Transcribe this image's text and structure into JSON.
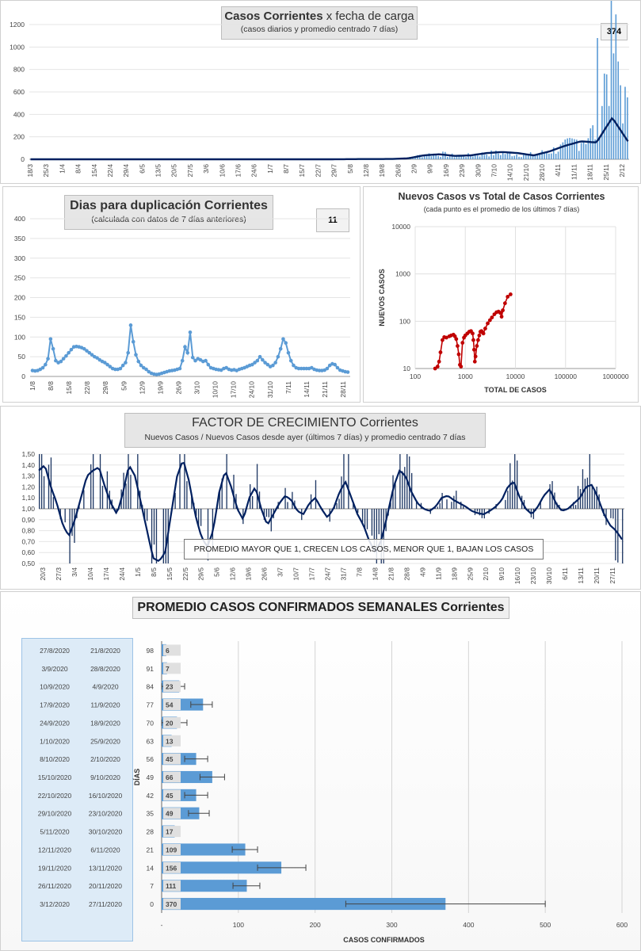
{
  "panel1": {
    "title_bold": "Casos Corrientes",
    "title_rest": "x fecha de carga",
    "subtitle": "(casos diarios y promedio centrado 7 días)",
    "badge": "374",
    "colors": {
      "bars": "#5b9bd5",
      "line": "#002060"
    }
  },
  "panel2": {
    "title": "Dias para duplicación Corrientes",
    "subtitle": "(calculada con datos de 7 días anteriores)",
    "badge": "11",
    "colors": {
      "line": "#5b9bd5"
    }
  },
  "panel3": {
    "title": "Nuevos Casos vs Total de Casos Corrientes",
    "subtitle": "(cada punto es el promedio de los últimos 7 días)",
    "colors": {
      "line": "#c00000"
    }
  },
  "panel4": {
    "title_caps": "FACTOR DE CRECIMIENTO",
    "title_rest": "Corrientes",
    "subtitle": "Nuevos Casos  / Nuevos Casos desde ayer (últimos 7 días) y promedio  centrado 7 días",
    "annotation": "PROMEDIO MAYOR QUE 1, CRECEN LOS CASOS, MENOR QUE 1, BAJAN LOS CASOS",
    "colors": {
      "bars": "#1f3864",
      "line": "#002060"
    }
  },
  "panel5": {
    "title": "PROMEDIO CASOS CONFIRMADOS SEMANALES Corrientes",
    "colors": {
      "bars": "#5b9bd5",
      "date_box": "#ddebf7"
    }
  },
  "chart_data": [
    {
      "type": "bar",
      "title": "Casos Corrientes x fecha de carga",
      "ylim": [
        0,
        1200
      ],
      "yticks": [
        0,
        200,
        400,
        600,
        800,
        1000,
        1200
      ],
      "xtick_labels": [
        "18/3",
        "25/3",
        "1/4",
        "8/4",
        "15/4",
        "22/4",
        "29/4",
        "6/5",
        "13/5",
        "20/5",
        "27/5",
        "3/6",
        "10/6",
        "17/6",
        "24/6",
        "1/7",
        "8/7",
        "15/7",
        "22/7",
        "29/7",
        "5/8",
        "12/8",
        "19/8",
        "26/8",
        "2/9",
        "9/9",
        "16/9",
        "23/9",
        "30/9",
        "7/10",
        "14/10",
        "21/10",
        "28/10",
        "4/11",
        "11/11",
        "18/11",
        "25/11",
        "2/12"
      ],
      "series": [
        {
          "type": "bar",
          "values": [
            0,
            0,
            0,
            0,
            0,
            0,
            0,
            0,
            0,
            0,
            0,
            0,
            0,
            0,
            0,
            0,
            0,
            0,
            0,
            0,
            0,
            0,
            0,
            0,
            5,
            40,
            50,
            30,
            35,
            50,
            55,
            45,
            40,
            70,
            110,
            180,
            250,
            1080,
            374
          ]
        },
        {
          "type": "line",
          "values": [
            0,
            0,
            0,
            0,
            0,
            0,
            0,
            0,
            0,
            0,
            0,
            0,
            0,
            0,
            0,
            0,
            0,
            0,
            0,
            0,
            1,
            2,
            2,
            3,
            8,
            35,
            45,
            30,
            35,
            55,
            65,
            55,
            35,
            70,
            120,
            160,
            150,
            370,
            160
          ]
        }
      ]
    },
    {
      "type": "line",
      "title": "Dias para duplicación Corrientes",
      "ylim": [
        0,
        400
      ],
      "yticks": [
        0,
        50,
        100,
        150,
        200,
        250,
        300,
        350,
        400
      ],
      "xtick_labels": [
        "1/8",
        "8/8",
        "15/8",
        "22/8",
        "29/8",
        "5/9",
        "12/9",
        "19/9",
        "26/9",
        "3/10",
        "10/10",
        "17/10",
        "24/10",
        "31/10",
        "7/11",
        "14/11",
        "21/11",
        "28/11"
      ],
      "values": [
        15,
        14,
        15,
        18,
        22,
        30,
        45,
        95,
        70,
        40,
        35,
        38,
        45,
        52,
        60,
        68,
        75,
        76,
        75,
        73,
        70,
        65,
        60,
        55,
        50,
        47,
        42,
        38,
        35,
        30,
        25,
        20,
        18,
        18,
        20,
        28,
        35,
        60,
        130,
        88,
        55,
        38,
        28,
        22,
        18,
        12,
        8,
        6,
        5,
        6,
        8,
        10,
        12,
        14,
        15,
        16,
        18,
        20,
        40,
        75,
        60,
        112,
        48,
        40,
        45,
        42,
        38,
        40,
        30,
        22,
        20,
        18,
        17,
        16,
        20,
        22,
        18,
        16,
        17,
        15,
        18,
        20,
        22,
        25,
        28,
        30,
        35,
        40,
        50,
        42,
        35,
        30,
        25,
        28,
        35,
        50,
        70,
        95,
        85,
        60,
        40,
        28,
        22,
        20,
        20,
        20,
        20,
        20,
        22,
        18,
        16,
        15,
        15,
        16,
        20,
        28,
        32,
        30,
        22,
        16,
        14,
        12,
        11
      ]
    },
    {
      "type": "scatter",
      "title": "Nuevos Casos vs Total de Casos Corrientes",
      "xlabel": "TOTAL DE CASOS",
      "ylabel": "NUEVOS  CASOS",
      "xscale": "log",
      "yscale": "log",
      "xlim": [
        100,
        1000000
      ],
      "ylim": [
        10,
        10000
      ],
      "xtick_labels": [
        "100",
        "1000",
        "10000",
        "100000",
        "1000000"
      ],
      "ytick_labels": [
        "10",
        "100",
        "1000",
        "10000"
      ],
      "points": [
        [
          250,
          10
        ],
        [
          280,
          11
        ],
        [
          300,
          14
        ],
        [
          320,
          22
        ],
        [
          350,
          40
        ],
        [
          380,
          46
        ],
        [
          420,
          45
        ],
        [
          480,
          48
        ],
        [
          520,
          50
        ],
        [
          580,
          52
        ],
        [
          620,
          48
        ],
        [
          660,
          42
        ],
        [
          700,
          30
        ],
        [
          740,
          20
        ],
        [
          780,
          12
        ],
        [
          820,
          11
        ],
        [
          880,
          35
        ],
        [
          940,
          45
        ],
        [
          1000,
          50
        ],
        [
          1100,
          55
        ],
        [
          1200,
          60
        ],
        [
          1300,
          62
        ],
        [
          1400,
          55
        ],
        [
          1450,
          40
        ],
        [
          1500,
          25
        ],
        [
          1550,
          14
        ],
        [
          1600,
          18
        ],
        [
          1700,
          30
        ],
        [
          1800,
          40
        ],
        [
          1900,
          50
        ],
        [
          2000,
          60
        ],
        [
          2100,
          62
        ],
        [
          2200,
          58
        ],
        [
          2300,
          55
        ],
        [
          2500,
          70
        ],
        [
          2800,
          90
        ],
        [
          3100,
          105
        ],
        [
          3400,
          120
        ],
        [
          3800,
          140
        ],
        [
          4200,
          155
        ],
        [
          4600,
          160
        ],
        [
          5000,
          150
        ],
        [
          5300,
          125
        ],
        [
          5600,
          170
        ],
        [
          6200,
          240
        ],
        [
          7000,
          330
        ],
        [
          8000,
          370
        ]
      ]
    },
    {
      "type": "bar",
      "title": "FACTOR DE CRECIMIENTO Corrientes",
      "ylim": [
        0.5,
        1.5
      ],
      "yticks": [
        "0,50",
        "0,60",
        "0,70",
        "0,80",
        "0,90",
        "1,00",
        "1,10",
        "1,20",
        "1,30",
        "1,40",
        "1,50"
      ],
      "xtick_labels": [
        "20/3",
        "27/3",
        "3/4",
        "10/4",
        "17/4",
        "24/4",
        "1/5",
        "8/5",
        "15/5",
        "22/5",
        "29/5",
        "5/6",
        "12/6",
        "19/6",
        "26/6",
        "3/7",
        "10/7",
        "17/7",
        "24/7",
        "31/7",
        "7/8",
        "14/8",
        "21/8",
        "28/8",
        "4/9",
        "11/9",
        "18/9",
        "25/9",
        "2/10",
        "9/10",
        "16/10",
        "23/10",
        "30/10",
        "6/11",
        "13/11",
        "20/11",
        "27/11"
      ],
      "line_values": [
        1.35,
        1.4,
        1.2,
        1.05,
        0.85,
        0.75,
        0.9,
        1.1,
        1.3,
        1.35,
        1.38,
        1.2,
        1.05,
        0.95,
        1.15,
        1.4,
        1.3,
        1.05,
        0.8,
        0.55,
        0.52,
        0.6,
        0.95,
        1.3,
        1.45,
        1.25,
        0.95,
        0.75,
        0.65,
        0.8,
        1.15,
        1.35,
        1.2,
        1.0,
        0.9,
        1.1,
        1.2,
        1.0,
        0.85,
        0.95,
        1.05,
        1.12,
        1.08,
        0.98,
        0.95,
        1.05,
        1.1,
        1.0,
        0.92,
        1.0,
        1.15,
        1.25,
        1.1,
        0.95,
        0.85,
        0.7,
        0.6,
        0.72,
        0.95,
        1.2,
        1.35,
        1.3,
        1.15,
        1.05,
        1.0,
        0.98,
        1.02,
        1.1,
        1.12,
        1.08,
        1.05,
        1.02,
        0.98,
        0.96,
        0.95,
        0.98,
        1.02,
        1.08,
        1.2,
        1.25,
        1.1,
        1.0,
        0.95,
        1.02,
        1.12,
        1.18,
        1.05,
        0.98,
        1.0,
        1.05,
        1.1,
        1.2,
        1.22,
        1.1,
        0.95,
        0.85,
        0.8,
        0.72
      ]
    },
    {
      "type": "bar",
      "orientation": "horizontal",
      "title": "PROMEDIO CASOS CONFIRMADOS SEMANALES Corrientes",
      "xlabel": "CASOS CONFIRMADOS",
      "ylabel": "DÍAS",
      "xlim": [
        0,
        600
      ],
      "xtick_labels": [
        "-",
        "100",
        "200",
        "300",
        "400",
        "500",
        "600"
      ],
      "rows": [
        {
          "end": "27/8/2020",
          "start": "21/8/2020",
          "dias": "98",
          "value": 6,
          "err_low": 0,
          "err_high": 0
        },
        {
          "end": "3/9/2020",
          "start": "28/8/2020",
          "dias": "91",
          "value": 7,
          "err_low": 0,
          "err_high": 0
        },
        {
          "end": "10/9/2020",
          "start": "4/9/2020",
          "dias": "84",
          "value": 23,
          "err_low": 0,
          "err_high": 30
        },
        {
          "end": "17/9/2020",
          "start": "11/9/2020",
          "dias": "77",
          "value": 54,
          "err_low": 38,
          "err_high": 66
        },
        {
          "end": "24/9/2020",
          "start": "18/9/2020",
          "dias": "70",
          "value": 20,
          "err_low": 0,
          "err_high": 33
        },
        {
          "end": "1/10/2020",
          "start": "25/9/2020",
          "dias": "63",
          "value": 13,
          "err_low": 0,
          "err_high": 0
        },
        {
          "end": "8/10/2020",
          "start": "2/10/2020",
          "dias": "56",
          "value": 45,
          "err_low": 30,
          "err_high": 60
        },
        {
          "end": "15/10/2020",
          "start": "9/10/2020",
          "dias": "49",
          "value": 66,
          "err_low": 50,
          "err_high": 82
        },
        {
          "end": "22/10/2020",
          "start": "16/10/2020",
          "dias": "42",
          "value": 45,
          "err_low": 30,
          "err_high": 60
        },
        {
          "end": "29/10/2020",
          "start": "23/10/2020",
          "dias": "35",
          "value": 49,
          "err_low": 35,
          "err_high": 62
        },
        {
          "end": "5/11/2020",
          "start": "30/10/2020",
          "dias": "28",
          "value": 17,
          "err_low": 0,
          "err_high": 0
        },
        {
          "end": "12/11/2020",
          "start": "6/11/2020",
          "dias": "21",
          "value": 109,
          "err_low": 92,
          "err_high": 125
        },
        {
          "end": "19/11/2020",
          "start": "13/11/2020",
          "dias": "14",
          "value": 156,
          "err_low": 125,
          "err_high": 188
        },
        {
          "end": "26/11/2020",
          "start": "20/11/2020",
          "dias": "7",
          "value": 111,
          "err_low": 93,
          "err_high": 128
        },
        {
          "end": "3/12/2020",
          "start": "27/11/2020",
          "dias": "0",
          "value": 370,
          "err_low": 240,
          "err_high": 500
        }
      ]
    }
  ]
}
